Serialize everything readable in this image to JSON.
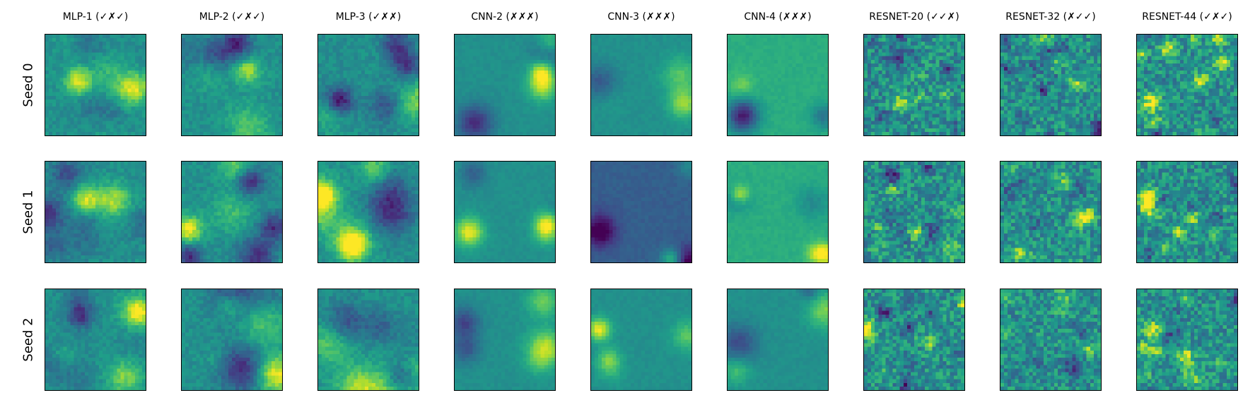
{
  "chart_data": {
    "type": "heatmap",
    "colormap": "viridis",
    "grid_size": 28,
    "columns": [
      {
        "label": "MLP-1 (✓✗✓)"
      },
      {
        "label": "MLP-2 (✓✗✓)"
      },
      {
        "label": "MLP-3 (✓✗✗)"
      },
      {
        "label": "CNN-2 (✗✗✗)"
      },
      {
        "label": "CNN-3 (✗✗✗)"
      },
      {
        "label": "CNN-4 (✗✗✗)"
      },
      {
        "label": "RESNET-20 (✓✓✗)"
      },
      {
        "label": "RESNET-32 (✗✓✓)"
      },
      {
        "label": "RESNET-44 (✓✗✓)"
      }
    ],
    "rows": [
      {
        "label": "Seed 0"
      },
      {
        "label": "Seed 1"
      },
      {
        "label": "Seed 2"
      }
    ],
    "ticks": "none"
  }
}
